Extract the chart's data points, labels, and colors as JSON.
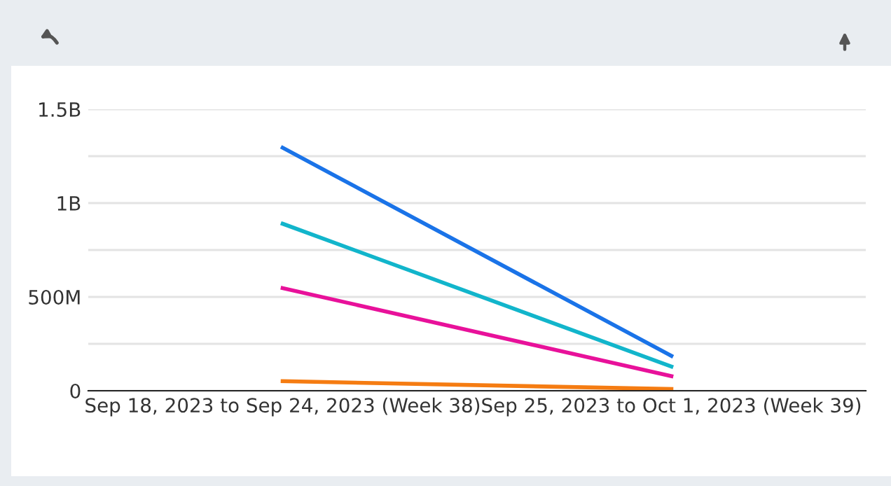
{
  "chart_data": {
    "type": "line",
    "categories": [
      "Sep 18, 2023 to Sep 24, 2023 (Week 38)",
      "Sep 25, 2023 to Oct 1, 2023 (Week 39)"
    ],
    "series": [
      {
        "color": "#1a73e8",
        "values": [
          1295000000,
          186000000
        ]
      },
      {
        "color": "#12b5cb",
        "values": [
          890000000,
          129000000
        ]
      },
      {
        "color": "#e8119a",
        "values": [
          547000000,
          78000000
        ]
      },
      {
        "color": "#f57c12",
        "values": [
          51000000,
          9000000
        ]
      }
    ],
    "ylim": [
      0,
      1500000000
    ],
    "yticks": [
      {
        "value": 0,
        "label": "0"
      },
      {
        "value": 250000000,
        "label": null
      },
      {
        "value": 500000000,
        "label": "500M"
      },
      {
        "value": 750000000,
        "label": null
      },
      {
        "value": 1000000000,
        "label": "1B"
      },
      {
        "value": 1250000000,
        "label": null
      },
      {
        "value": 1500000000,
        "label": "1.5B"
      }
    ],
    "grid": "y",
    "marker": "none",
    "line_style": "solid"
  }
}
